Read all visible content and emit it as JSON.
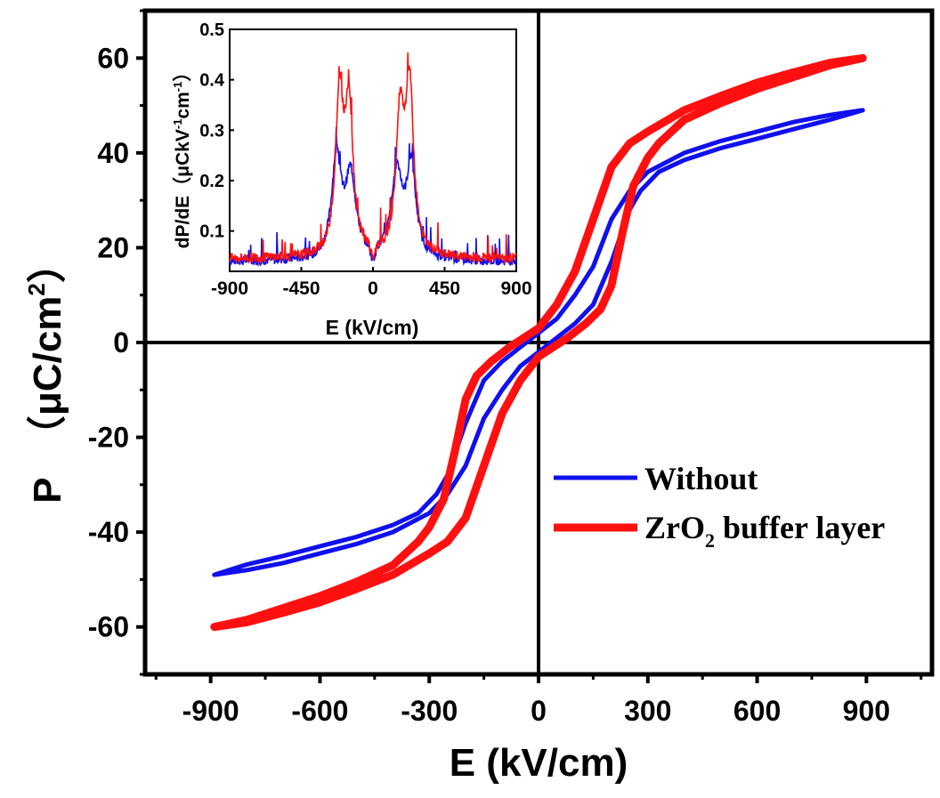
{
  "chart_data": [
    {
      "type": "line",
      "xlabel": "E (kV/cm)",
      "ylabel_main": "P",
      "ylabel_unit_prefix": "μC/cm",
      "ylabel_unit_sup": "2",
      "xlim": [
        -1080,
        1080
      ],
      "ylim": [
        -70,
        70
      ],
      "x_ticks": [
        -900,
        -600,
        -300,
        0,
        300,
        600,
        900
      ],
      "x_tick_labels": [
        "-900",
        "-600",
        "-300",
        "0",
        "300",
        "600",
        "900"
      ],
      "y_ticks": [
        -60,
        -40,
        -20,
        0,
        20,
        40,
        60
      ],
      "y_tick_labels": [
        "-60",
        "-40",
        "-20",
        "0",
        "20",
        "40",
        "60"
      ],
      "zero_lines": true,
      "grid": false,
      "legend_position": "right",
      "series": [
        {
          "name": "Without",
          "color": "#1010ee",
          "upper_branch": {
            "x": [
              -890,
              -800,
              -700,
              -600,
              -500,
              -400,
              -330,
              -280,
              -250,
              -200,
              -150,
              -100,
              -50,
              0,
              50,
              100,
              150,
              200,
              250,
              300,
              400,
              500,
              600,
              700,
              800,
              890
            ],
            "y": [
              -49,
              -46.8,
              -45,
              -43,
              -41,
              -38.5,
              -36,
              -32,
              -28,
              -17,
              -8,
              -4,
              -1,
              2,
              5,
              10,
              16,
              26,
              32,
              36,
              40,
              42.5,
              44.5,
              46.5,
              48,
              49
            ]
          },
          "lower_branch": {
            "x": [
              890,
              800,
              700,
              600,
              500,
              400,
              330,
              280,
              250,
              200,
              150,
              100,
              50,
              0,
              -50,
              -100,
              -150,
              -200,
              -250,
              -300,
              -400,
              -500,
              -600,
              -700,
              -800,
              -890
            ],
            "y": [
              49,
              47,
              45,
              43,
              41,
              38.5,
              36,
              32,
              28,
              17,
              8,
              4,
              1,
              -2,
              -5,
              -10,
              -16,
              -26,
              -32,
              -36,
              -40,
              -42.5,
              -44.5,
              -46.5,
              -48,
              -49
            ]
          }
        },
        {
          "name": "ZrO",
          "name_sub": "2",
          "name_suffix": " buffer layer",
          "color": "#ff1010",
          "upper_branch": {
            "x": [
              -890,
              -800,
              -700,
              -600,
              -500,
              -400,
              -330,
              -300,
              -260,
              -230,
              -200,
              -170,
              -130,
              -80,
              0,
              50,
              100,
              150,
              200,
              250,
              300,
              400,
              500,
              600,
              700,
              800,
              890
            ],
            "y": [
              -60,
              -58.5,
              -56,
              -53.5,
              -50.5,
              -47,
              -42,
              -39,
              -33,
              -23,
              -12,
              -7,
              -4,
              -1,
              3,
              8,
              15,
              26,
              37,
              42,
              44.5,
              49,
              52,
              54.8,
              57,
              59,
              60
            ]
          },
          "lower_branch": {
            "x": [
              890,
              800,
              700,
              600,
              500,
              400,
              330,
              300,
              260,
              230,
              200,
              170,
              130,
              80,
              0,
              -50,
              -100,
              -150,
              -200,
              -250,
              -300,
              -400,
              -500,
              -600,
              -700,
              -800,
              -890
            ],
            "y": [
              60,
              58.5,
              56,
              53.5,
              50.5,
              47,
              42,
              39,
              33,
              23,
              12,
              7,
              4,
              1,
              -3,
              -8,
              -15,
              -26,
              -37,
              -42,
              -44.5,
              -49,
              -52,
              -54.8,
              -57,
              -59,
              -60
            ]
          }
        }
      ]
    },
    {
      "type": "line",
      "role": "inset",
      "xlabel": "E (kV/cm)",
      "ylabel": "dP/dE（μCkV",
      "ylabel_sup1": "-1",
      "ylabel_mid": "cm",
      "ylabel_sup2": "-1",
      "ylabel_end": "）",
      "xlim": [
        -900,
        900
      ],
      "ylim": [
        0.02,
        0.5
      ],
      "x_ticks": [
        -900,
        -450,
        0,
        450,
        900
      ],
      "x_tick_labels": [
        "-900",
        "-450",
        "0",
        "450",
        "900"
      ],
      "y_ticks": [
        0.1,
        0.2,
        0.3,
        0.4,
        0.5
      ],
      "y_tick_labels": [
        "0.1",
        "0.2",
        "0.3",
        "0.4",
        "0.5"
      ],
      "series": [
        {
          "color": "#1010ee",
          "peaks": [
            {
              "center": -230,
              "height": 0.24,
              "width": 35
            },
            {
              "center": -140,
              "height": 0.2,
              "width": 40
            },
            {
              "center": 150,
              "height": 0.21,
              "width": 40
            },
            {
              "center": 240,
              "height": 0.22,
              "width": 35
            }
          ],
          "baseline": 0.04
        },
        {
          "color": "#ff1010",
          "peaks": [
            {
              "center": -210,
              "height": 0.345,
              "width": 30
            },
            {
              "center": -150,
              "height": 0.33,
              "width": 30
            },
            {
              "center": 170,
              "height": 0.31,
              "width": 30
            },
            {
              "center": 230,
              "height": 0.37,
              "width": 30
            }
          ],
          "baseline": 0.045
        }
      ]
    }
  ]
}
